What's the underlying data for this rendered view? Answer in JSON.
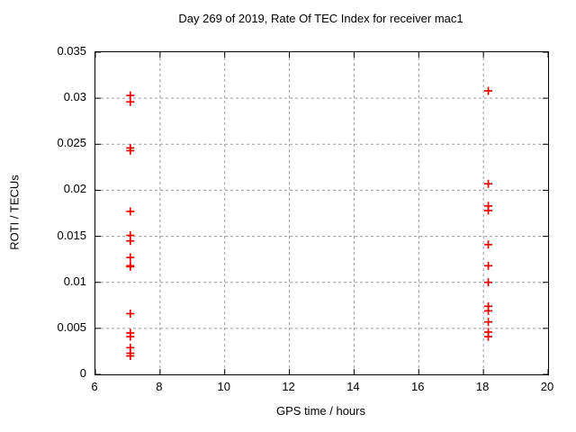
{
  "chart_data": {
    "type": "scatter",
    "title": "Day 269 of 2019, Rate Of TEC Index for receiver mac1",
    "xlabel": "GPS time / hours",
    "ylabel": "ROTI / TECUs",
    "xlim": [
      6,
      20
    ],
    "ylim": [
      0,
      0.035
    ],
    "xticks": {
      "values": [
        6,
        8,
        10,
        12,
        14,
        16,
        18,
        20
      ],
      "labels": [
        "6",
        "8",
        "10",
        "12",
        "14",
        "16",
        "18",
        "20"
      ]
    },
    "yticks": {
      "values": [
        0,
        0.005,
        0.01,
        0.015,
        0.02,
        0.025,
        0.03,
        0.035
      ],
      "labels": [
        "0",
        "0.005",
        "0.01",
        "0.015",
        "0.02",
        "0.025",
        "0.03",
        "0.035"
      ]
    },
    "grid": {
      "shown": true,
      "style": "dashed",
      "color": "#9a9a9a"
    },
    "legend_position": "none",
    "marker": {
      "shape": "plus",
      "color": "#ee0000",
      "size": 9
    },
    "axis_color": "#000000",
    "series": [
      {
        "name": "ROTI",
        "points": [
          [
            7.08,
            0.0303
          ],
          [
            7.08,
            0.0296
          ],
          [
            7.08,
            0.0246
          ],
          [
            7.08,
            0.0243
          ],
          [
            7.08,
            0.0177
          ],
          [
            7.08,
            0.0151
          ],
          [
            7.08,
            0.0145
          ],
          [
            7.08,
            0.0127
          ],
          [
            7.08,
            0.0118
          ],
          [
            7.08,
            0.0117
          ],
          [
            7.08,
            0.0066
          ],
          [
            7.08,
            0.0045
          ],
          [
            7.08,
            0.0041
          ],
          [
            7.08,
            0.0029
          ],
          [
            7.08,
            0.0023
          ],
          [
            7.08,
            0.002
          ],
          [
            18.15,
            0.0308
          ],
          [
            18.15,
            0.0207
          ],
          [
            18.15,
            0.0183
          ],
          [
            18.15,
            0.0178
          ],
          [
            18.15,
            0.0141
          ],
          [
            18.15,
            0.0118
          ],
          [
            18.15,
            0.01
          ],
          [
            18.15,
            0.0074
          ],
          [
            18.15,
            0.0069
          ],
          [
            18.15,
            0.0057
          ],
          [
            18.15,
            0.0046
          ],
          [
            18.15,
            0.0041
          ]
        ]
      }
    ]
  }
}
